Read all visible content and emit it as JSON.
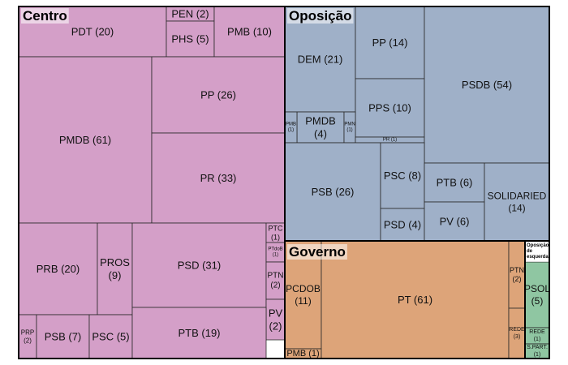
{
  "chart_data": {
    "type": "treemap",
    "title": "",
    "groups": [
      {
        "name": "Centro",
        "color": "#d49fc8",
        "items": [
          {
            "party": "PDT",
            "value": 20,
            "label": "PDT (20)"
          },
          {
            "party": "PEN",
            "value": 2,
            "label": "PEN (2)"
          },
          {
            "party": "PHS",
            "value": 5,
            "label": "PHS (5)"
          },
          {
            "party": "PMB",
            "value": 10,
            "label": "PMB (10)"
          },
          {
            "party": "PMDB",
            "value": 61,
            "label": "PMDB (61)"
          },
          {
            "party": "PP",
            "value": 26,
            "label": "PP (26)"
          },
          {
            "party": "PR",
            "value": 33,
            "label": "PR (33)"
          },
          {
            "party": "PRB",
            "value": 20,
            "label": "PRB (20)"
          },
          {
            "party": "PROS",
            "value": 9,
            "label": "PROS (9)"
          },
          {
            "party": "PSD",
            "value": 31,
            "label": "PSD (31)"
          },
          {
            "party": "PTC",
            "value": 1,
            "label": "PTC (1)"
          },
          {
            "party": "PTdoB",
            "value": 1,
            "label": "PTdoB (1)"
          },
          {
            "party": "PTN",
            "value": 2,
            "label": "PTN (2)"
          },
          {
            "party": "PV",
            "value": 2,
            "label": "PV (2)"
          },
          {
            "party": "PRP",
            "value": 2,
            "label": "PRP (2)"
          },
          {
            "party": "PSB",
            "value": 7,
            "label": "PSB (7)"
          },
          {
            "party": "PSC",
            "value": 5,
            "label": "PSC (5)"
          },
          {
            "party": "PTB",
            "value": 19,
            "label": "PTB (19)"
          }
        ]
      },
      {
        "name": "Oposição",
        "color": "#9fb0c8",
        "items": [
          {
            "party": "DEM",
            "value": 21,
            "label": "DEM (21)"
          },
          {
            "party": "PP",
            "value": 14,
            "label": "PP (14)"
          },
          {
            "party": "PPS",
            "value": 10,
            "label": "PPS (10)"
          },
          {
            "party": "PMDB",
            "value": 4,
            "label": "PMDB (4)"
          },
          {
            "party": "PMB",
            "value": 1,
            "label": "PMB (1)"
          },
          {
            "party": "PMN",
            "value": 1,
            "label": "PMN (1)"
          },
          {
            "party": "PR",
            "value": 1,
            "label": "PR (1)"
          },
          {
            "party": "PSDB",
            "value": 54,
            "label": "PSDB (54)"
          },
          {
            "party": "PSB",
            "value": 26,
            "label": "PSB (26)"
          },
          {
            "party": "PSC",
            "value": 8,
            "label": "PSC (8)"
          },
          {
            "party": "PSD",
            "value": 4,
            "label": "PSD (4)"
          },
          {
            "party": "PTB",
            "value": 6,
            "label": "PTB (6)"
          },
          {
            "party": "PV",
            "value": 6,
            "label": "PV (6)"
          },
          {
            "party": "SOLIDARIED",
            "value": 14,
            "label": "SOLIDARIED (14)"
          }
        ]
      },
      {
        "name": "Governo",
        "color": "#dda479",
        "items": [
          {
            "party": "PCDOB",
            "value": 11,
            "label": "PCDOB (11)"
          },
          {
            "party": "PMB",
            "value": 1,
            "label": "PMB (1)"
          },
          {
            "party": "PT",
            "value": 61,
            "label": "PT (61)"
          },
          {
            "party": "PTN",
            "value": 2,
            "label": "PTN (2)"
          },
          {
            "party": "REDE",
            "value": 3,
            "label": "REDE (3)"
          }
        ]
      },
      {
        "name": "Oposição de esquerda",
        "color": "#8fc6a2",
        "items": [
          {
            "party": "PSOL",
            "value": 5,
            "label": "PSOL (5)"
          },
          {
            "party": "REDE",
            "value": 1,
            "label": "REDE (1)"
          },
          {
            "party": "S.PART.",
            "value": 1,
            "label": "S.PART. (1)"
          }
        ]
      }
    ]
  }
}
